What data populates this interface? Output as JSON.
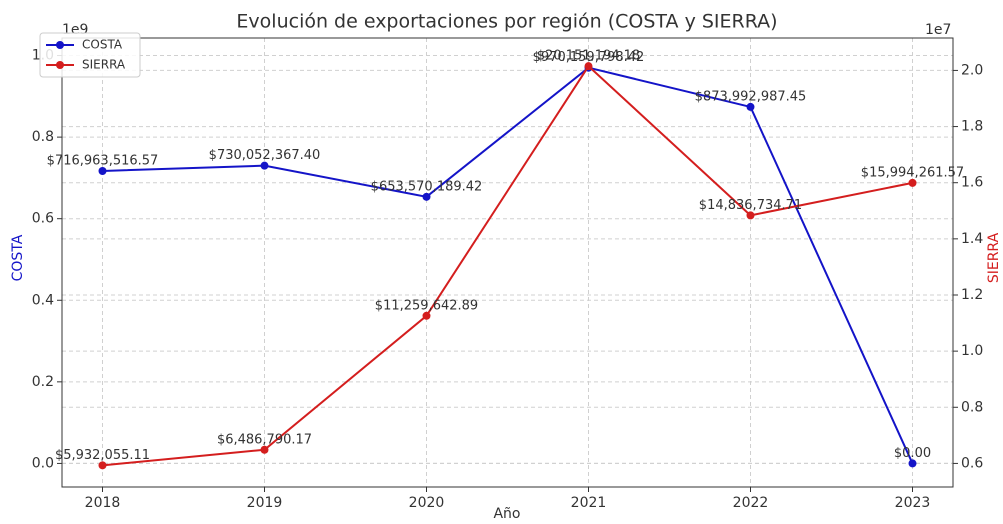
{
  "chart_data": {
    "type": "line",
    "title": "Evolución de exportaciones por región (COSTA y SIERRA)",
    "x_label": "Año",
    "y_label": "COSTA",
    "y2_label": "SIERRA",
    "y_offset_label": "1e9",
    "y2_offset_label": "1e7",
    "x": [
      2018,
      2019,
      2020,
      2021,
      2022,
      2023
    ],
    "xlim": [
      2017.75,
      2023.25
    ],
    "xticks": [
      2018,
      2019,
      2020,
      2021,
      2022,
      2023
    ],
    "ylim": [
      -57800000,
      1043000000
    ],
    "yticks": [
      {
        "value": 0,
        "label": "0.0"
      },
      {
        "value": 200000000,
        "label": "0.2"
      },
      {
        "value": 400000000,
        "label": "0.4"
      },
      {
        "value": 600000000,
        "label": "0.6"
      },
      {
        "value": 800000000,
        "label": "0.8"
      },
      {
        "value": 1000000000,
        "label": "1.0"
      }
    ],
    "y2lim": [
      5160000,
      21155000
    ],
    "y2ticks": [
      {
        "value": 6000000,
        "label": "0.6"
      },
      {
        "value": 8000000,
        "label": "0.8"
      },
      {
        "value": 10000000,
        "label": "1.0"
      },
      {
        "value": 12000000,
        "label": "1.2"
      },
      {
        "value": 14000000,
        "label": "1.4"
      },
      {
        "value": 16000000,
        "label": "1.6"
      },
      {
        "value": 18000000,
        "label": "1.8"
      },
      {
        "value": 20000000,
        "label": "2.0"
      }
    ],
    "grid": true,
    "legend": "upper left",
    "series": [
      {
        "name": "COSTA",
        "color": "#1414c8",
        "axis": "y",
        "values": [
          716963516.57,
          730052367.4,
          653570189.42,
          970159798.42,
          873992987.45,
          0
        ],
        "value_labels": [
          "$716,963,516.57",
          "$730,052,367.40",
          "$653,570,189.42",
          "$970,159,798.42",
          "$873,992,987.45",
          "$0.00"
        ]
      },
      {
        "name": "SIERRA",
        "color": "#d41e1e",
        "axis": "y2",
        "values": [
          5932055.11,
          6486790.17,
          11259642.89,
          20151194.18,
          14836734.71,
          15994261.57
        ],
        "value_labels": [
          "$5,932,055.11",
          "$6,486,790.17",
          "$11,259,642.89",
          "$20,151,194.18",
          "$14,836,734.71",
          "$15,994,261.57"
        ]
      }
    ]
  }
}
